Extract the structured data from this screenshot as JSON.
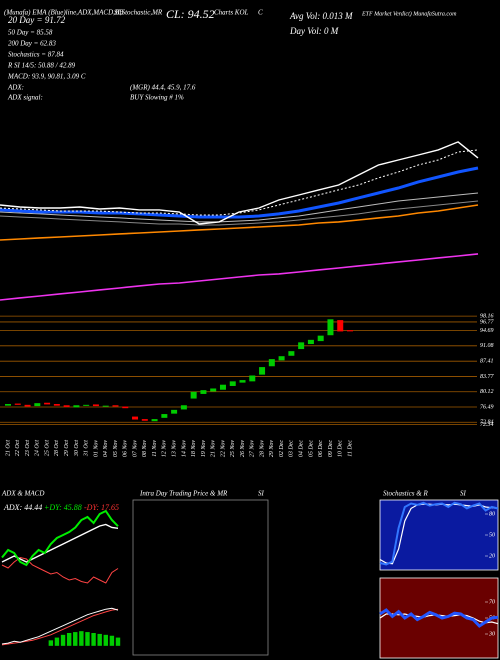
{
  "header": {
    "studies": "(Munafa) EMA (Blue)line,ADX,MACD,BB",
    "studies2": "SI,Stochastic,MR",
    "close": "CL: 94.52",
    "charts": "Charts KOL",
    "c": "C",
    "avg_vol": "Avg Vol: 0.013 M",
    "verdict": "ETF Market Verdict) MunafaSutra.com",
    "day_vol": "Day Vol: 0  M",
    "ma20": "20 Day = 91.72",
    "ma50": "50 Day = 85.58",
    "ma200": "200 Day = 62.83",
    "stoch": "Stochastics = 87.84",
    "rsi": "R        SI 14/5: 50.88 / 42.89",
    "macd": "MACD: 93.9, 90.81, 3.09 C",
    "adx": "ADX:",
    "adx_vals": "(MGR) 44.4, 45.9, 17.6",
    "adx_signal": "ADX  signal:",
    "signal": "BUY Slowing # 1%"
  },
  "chart_data": [
    {
      "type": "line",
      "ylim": [
        0,
        100
      ],
      "categories": [
        null,
        null,
        null,
        null,
        null,
        null,
        null,
        null,
        null,
        null,
        null,
        null,
        null,
        null,
        null,
        null,
        null,
        null,
        null,
        null,
        null,
        null,
        null,
        null,
        null
      ],
      "series": [
        {
          "color": "#888888",
          "values": [
            52.5,
            51.9,
            51.3,
            50.6,
            50.0,
            49.4,
            48.8,
            48.1,
            47.5,
            47.5,
            46.9,
            46.9,
            47.5,
            48.1,
            48.8,
            50.0,
            51.3,
            52.5,
            53.8,
            55.6,
            56.9,
            58.1,
            59.4,
            60.6,
            61.9
          ]
        },
        {
          "color": "#bbbbbb",
          "values": [
            55.0,
            54.4,
            53.8,
            53.1,
            52.5,
            51.9,
            51.3,
            50.6,
            50.0,
            49.4,
            48.8,
            48.8,
            49.4,
            50.0,
            51.3,
            52.5,
            54.4,
            56.3,
            58.1,
            60.0,
            61.9,
            63.1,
            64.4,
            65.6,
            66.9
          ]
        },
        {
          "color": "#ff8800",
          "values": [
            37.5,
            38.1,
            38.8,
            39.4,
            40.0,
            40.6,
            41.3,
            41.9,
            42.5,
            43.1,
            43.8,
            44.4,
            45.0,
            45.6,
            46.3,
            46.9,
            48.1,
            48.8,
            50.0,
            51.3,
            52.5,
            54.4,
            55.6,
            57.5,
            59.4
          ]
        },
        {
          "color": "#ee33ee",
          "values": [
            0,
            1.3,
            2.5,
            3.8,
            5.0,
            6.3,
            7.5,
            8.8,
            10.0,
            10.6,
            11.9,
            13.1,
            14.4,
            15.6,
            16.3,
            17.5,
            18.8,
            20.0,
            21.3,
            22.5,
            23.8,
            25.0,
            26.3,
            27.5,
            28.8
          ]
        },
        {
          "color": "#1155ff",
          "values": [
            56.3,
            55.6,
            55.0,
            55.0,
            55.0,
            54.4,
            54.4,
            53.8,
            53.1,
            52.5,
            51.9,
            51.9,
            51.9,
            52.5,
            53.8,
            55.6,
            58.1,
            60.6,
            63.8,
            66.9,
            70.0,
            73.8,
            76.9,
            80.0,
            82.5
          ]
        },
        {
          "color": "#ffffff",
          "dashed": true,
          "values": [
            57.5,
            56.9,
            56.3,
            55.6,
            55.6,
            55.6,
            55.0,
            54.4,
            54.4,
            53.8,
            53.1,
            53.1,
            54.4,
            56.3,
            59.4,
            62.5,
            65.6,
            68.8,
            71.9,
            76.3,
            80.0,
            84.4,
            87.5,
            92.5,
            93.8
          ]
        },
        {
          "color": "#ffffff",
          "values": [
            59.4,
            58.1,
            57.5,
            57.5,
            58.1,
            56.9,
            57.5,
            56.3,
            56.3,
            55.0,
            47.5,
            48.8,
            55.0,
            57.5,
            62.5,
            65.6,
            68.8,
            71.9,
            78.1,
            84.4,
            87.5,
            90.6,
            93.8,
            98.8,
            88.8
          ]
        }
      ]
    },
    {
      "type": "candlestick",
      "ylim": [
        71,
        102
      ],
      "yticks": [
        98.16,
        96.77,
        94.69,
        91.08,
        87.41,
        83.77,
        80.12,
        76.49,
        72.84,
        72.34
      ],
      "grid_color": "#a05a00",
      "up_color": "#00cc00",
      "down_color": "#ff0000",
      "categories": [
        "21 Oct",
        "22 Oct",
        "23 Oct",
        "24 Oct",
        "25 Oct",
        "28 Oct",
        "29 Oct",
        "30 Oct",
        "31 Oct",
        "01 Nov",
        "04 Nov",
        "05 Nov",
        "06 Nov",
        "07 Nov",
        "08 Nov",
        "11 Nov",
        "12 Nov",
        "13 Nov",
        "14 Nov",
        "18 Nov",
        "19 Nov",
        "21 Nov",
        "22 Nov",
        "25 Nov",
        "26 Nov",
        "27 Nov",
        "28 Nov",
        "29 Nov",
        "02 Dec",
        "03 Dec",
        "04 Dec",
        "05 Dec",
        "06 Dec",
        "09 Dec",
        "10 Dec",
        "11 Dec"
      ],
      "open": [
        76.8,
        77.3,
        77.0,
        76.7,
        77.5,
        77.2,
        76.9,
        76.4,
        76.8,
        77.1,
        76.6,
        76.9,
        76.6,
        74.2,
        73.6,
        73.1,
        73.9,
        74.9,
        75.9,
        78.5,
        79.6,
        80.2,
        80.6,
        81.5,
        82.3,
        82.6,
        84.2,
        86.2,
        87.6,
        88.7,
        90.3,
        91.5,
        92.2,
        93.6,
        97.2,
        94.8
      ],
      "close": [
        77.2,
        77.0,
        76.6,
        77.4,
        77.1,
        76.8,
        76.5,
        76.9,
        77.0,
        76.7,
        76.8,
        76.6,
        76.2,
        73.5,
        73.2,
        73.6,
        74.8,
        75.8,
        76.9,
        80.1,
        80.5,
        80.9,
        81.8,
        82.6,
        82.9,
        84.0,
        86.0,
        87.9,
        88.6,
        89.8,
        91.9,
        92.5,
        93.5,
        97.4,
        94.5,
        94.52
      ]
    },
    {
      "type": "line",
      "title": "ADX  & MACD",
      "ylim": [
        0,
        60
      ],
      "annotations": [
        {
          "text": "ADX: 44.44",
          "color": "#ffffff"
        },
        {
          "text": "+DY: 45.88",
          "color": "#00ee00"
        },
        {
          "text": "-DY: 17.65",
          "color": "#ff3333"
        }
      ],
      "categories": [
        null,
        null,
        null,
        null,
        null,
        null,
        null,
        null,
        null,
        null,
        null,
        null,
        null,
        null,
        null,
        null,
        null,
        null,
        null,
        null
      ],
      "series": [
        {
          "color": "#ff4444",
          "values": [
            20,
            18,
            22,
            25,
            24,
            20,
            18,
            16,
            14,
            15,
            12,
            10,
            11,
            9,
            8,
            12,
            10,
            8,
            15,
            17.65
          ]
        },
        {
          "color": "#ffffff",
          "values": [
            22,
            24,
            26,
            24,
            22,
            24,
            26,
            28,
            30,
            32,
            34,
            36,
            38,
            40,
            42,
            44,
            46,
            47,
            45,
            44.44
          ]
        },
        {
          "color": "#00ee00",
          "values": [
            25,
            30,
            28,
            22,
            20,
            26,
            30,
            28,
            34,
            38,
            40,
            42,
            45,
            50,
            52,
            48,
            54,
            56,
            50,
            45.88
          ]
        }
      ]
    },
    {
      "type": "macd",
      "ylim": [
        -1,
        5
      ],
      "categories": [
        null,
        null,
        null,
        null,
        null,
        null,
        null,
        null,
        null,
        null,
        null,
        null,
        null,
        null,
        null,
        null,
        null,
        null,
        null,
        null
      ],
      "histogram": {
        "color": "#00cc00",
        "values": [
          0,
          0,
          0,
          0,
          0,
          0,
          0,
          0,
          0.6,
          0.9,
          1.2,
          1.4,
          1.5,
          1.6,
          1.5,
          1.4,
          1.3,
          1.2,
          1.1,
          0.9
        ]
      },
      "series": [
        {
          "color": "#ff4444",
          "values": [
            0.1,
            0.2,
            0.3,
            0.4,
            0.5,
            0.6,
            0.8,
            1.0,
            1.2,
            1.5,
            1.8,
            2.1,
            2.4,
            2.7,
            3.0,
            3.3,
            3.5,
            3.7,
            3.9,
            4.0
          ]
        },
        {
          "color": "#ffffff",
          "values": [
            0.2,
            0.3,
            0.5,
            0.4,
            0.6,
            0.8,
            1.0,
            1.3,
            1.6,
            1.9,
            2.2,
            2.5,
            2.8,
            3.1,
            3.4,
            3.6,
            3.8,
            4.0,
            4.1,
            3.9
          ]
        }
      ]
    },
    {
      "type": "line",
      "title": "Intra Day Trading Price  & MR",
      "subtitle": "SI",
      "series": []
    },
    {
      "type": "line",
      "title": "Stochastics & R",
      "subtitle": "SI",
      "ylim": [
        0,
        100
      ],
      "yticks": [
        80,
        50,
        20
      ],
      "background": "#0a1aa0",
      "categories": [
        null,
        null,
        null,
        null,
        null,
        null,
        null,
        null,
        null,
        null,
        null,
        null,
        null,
        null,
        null,
        null,
        null,
        null,
        null,
        null
      ],
      "series": [
        {
          "color": "#ffffff",
          "values": [
            15,
            10,
            9,
            30,
            70,
            88,
            93,
            94,
            94,
            93,
            94,
            93,
            94,
            93,
            92,
            91,
            93,
            90,
            89,
            88
          ]
        },
        {
          "color": "#3377ff",
          "values": [
            10,
            8,
            12,
            60,
            90,
            95,
            93,
            96,
            92,
            94,
            95,
            90,
            96,
            94,
            88,
            92,
            95,
            85,
            90,
            87.84
          ]
        }
      ]
    },
    {
      "type": "line",
      "ylim": [
        0,
        100
      ],
      "yticks": [
        70,
        50,
        30
      ],
      "background": "#6a0000",
      "categories": [
        null,
        null,
        null,
        null,
        null,
        null,
        null,
        null,
        null,
        null,
        null,
        null,
        null,
        null,
        null,
        null,
        null,
        null,
        null,
        null
      ],
      "series": [
        {
          "color": "#ffffff",
          "values": [
            50,
            55,
            55,
            54,
            55,
            53,
            52,
            51,
            53,
            54,
            53,
            52,
            53,
            54,
            53,
            50,
            46,
            44,
            45,
            42.89
          ]
        },
        {
          "color": "#2255ff",
          "values": [
            55,
            60,
            52,
            58,
            50,
            55,
            48,
            52,
            57,
            54,
            50,
            52,
            56,
            55,
            50,
            48,
            40,
            45,
            50,
            50.88
          ]
        }
      ]
    }
  ]
}
